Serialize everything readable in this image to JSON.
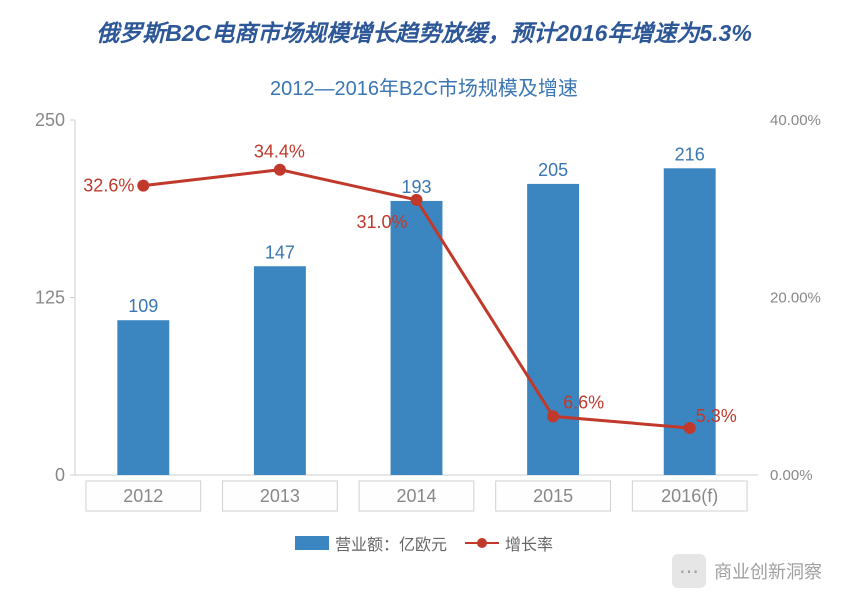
{
  "title": "俄罗斯B2C电商市场规模增长趋势放缓，预计2016年增速为5.3%",
  "title_color": "#2d5797",
  "title_fontsize": 23,
  "subtitle": "2012—2016年B2C市场规模及增速",
  "subtitle_color": "#3a76b4",
  "subtitle_fontsize": 20,
  "chart": {
    "type": "bar+line",
    "categories": [
      "2012",
      "2013",
      "2014",
      "2015",
      "2016(f)"
    ],
    "bars": {
      "values": [
        109,
        147,
        193,
        205,
        216
      ],
      "labels": [
        "109",
        "147",
        "193",
        "205",
        "216"
      ],
      "color": "#3b86c0",
      "width_ratio": 0.38
    },
    "line": {
      "values": [
        32.6,
        34.4,
        31.0,
        6.6,
        5.3
      ],
      "labels": [
        "32.6%",
        "34.4%",
        "31.0%",
        "6.6%",
        "5.3%"
      ],
      "color": "#c0392b",
      "marker_color": "#c0392b",
      "line_width": 3,
      "marker_radius": 6
    },
    "y_left": {
      "min": 0,
      "max": 250,
      "ticks": [
        0,
        125,
        250
      ]
    },
    "y_right": {
      "min": 0,
      "max": 40,
      "ticks": [
        "0.00%",
        "20.00%",
        "40.00%"
      ]
    },
    "plot_bg": "#ffffff",
    "axis_line_color": "#cfcfcf",
    "x_border_color": "#d0d0d0",
    "x_box_bg": "#fefefe"
  },
  "legend": {
    "bar_label": "营业额：亿欧元",
    "line_label": "增长率",
    "text_color": "#666666"
  },
  "watermark": {
    "text": "商业创新洞察",
    "icon_glyph": "⋯"
  }
}
